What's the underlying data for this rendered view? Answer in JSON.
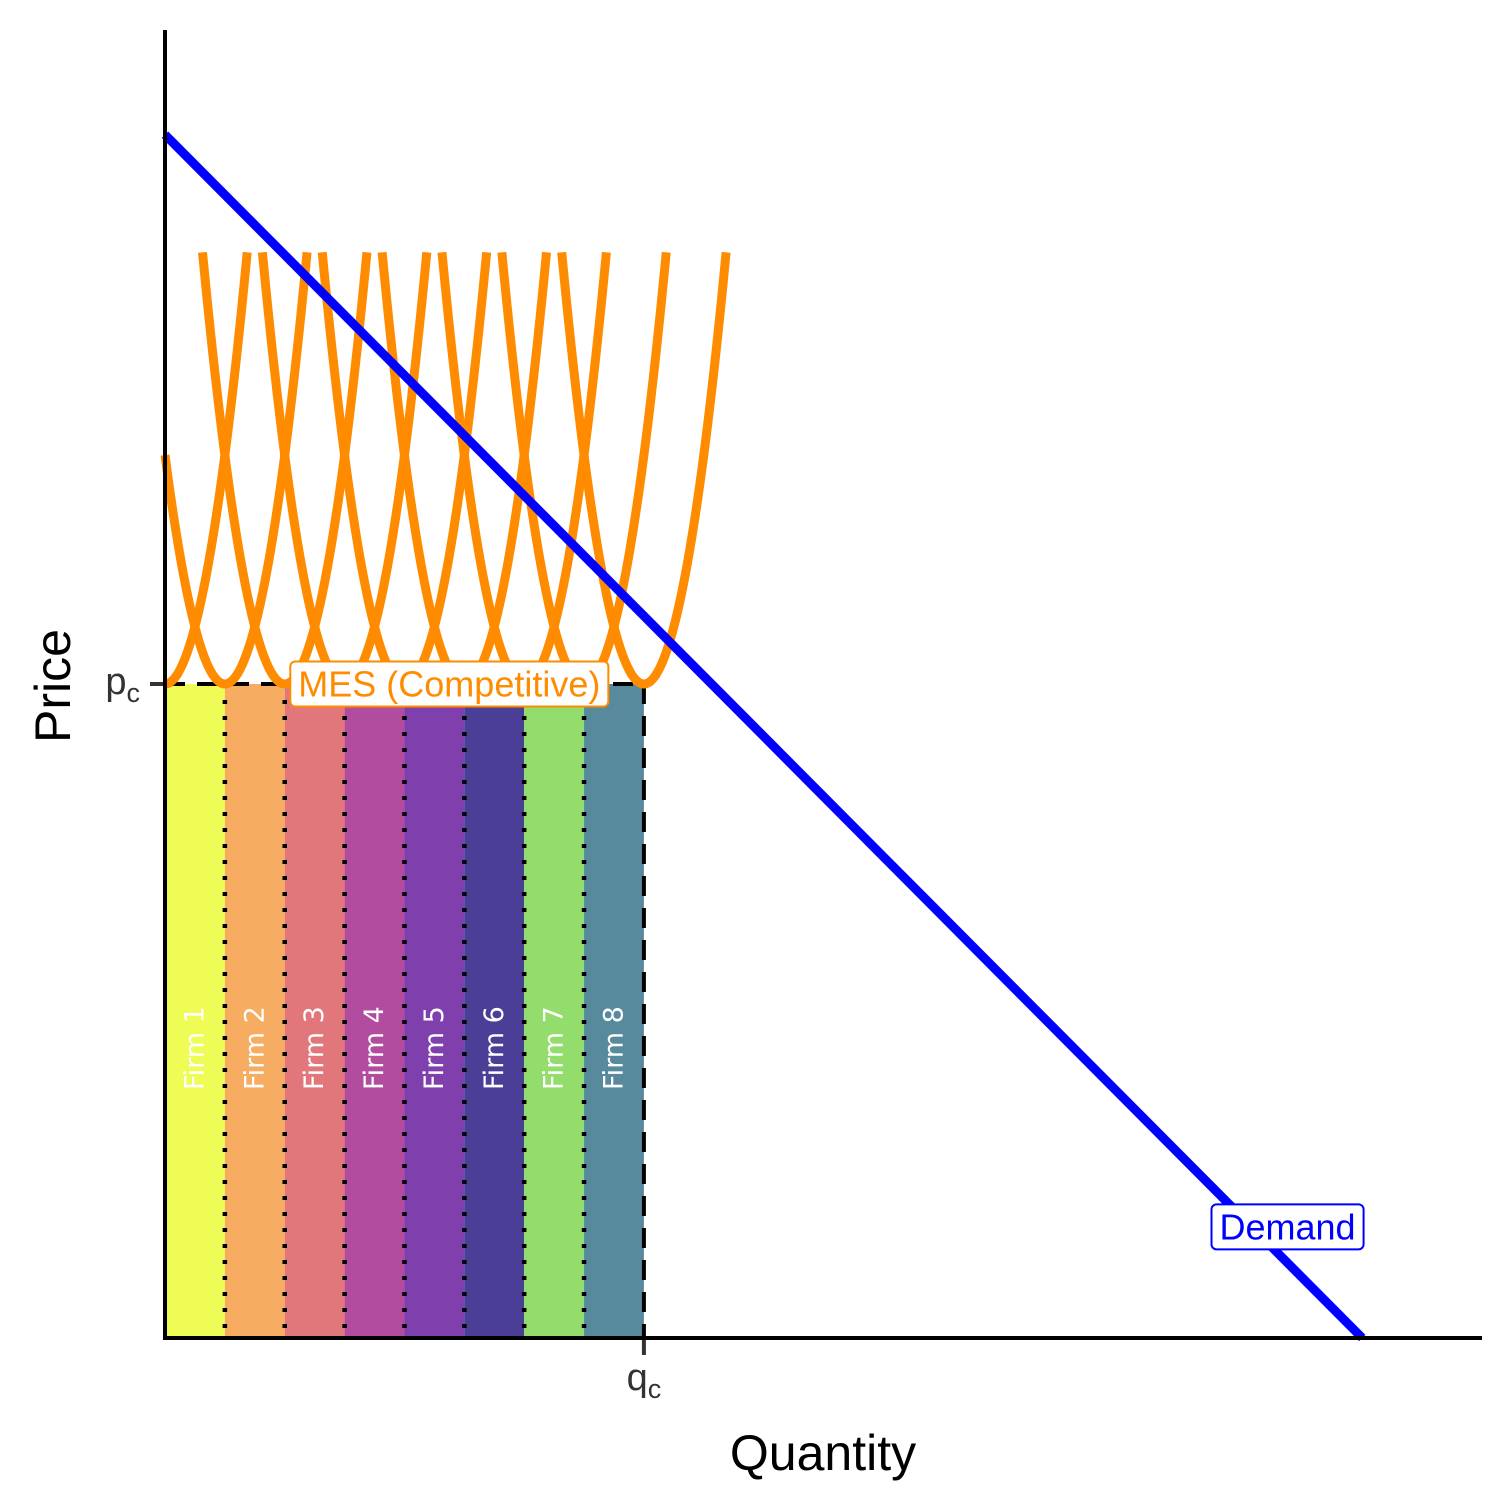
{
  "chart_data": {
    "type": "line",
    "title": "",
    "xlabel": "Quantity",
    "ylabel": "Price",
    "xlim": [
      0,
      22
    ],
    "ylim": [
      0,
      20
    ],
    "grid": false,
    "x_ticks": [
      {
        "value": 8,
        "label": "q",
        "sub": "c"
      }
    ],
    "y_ticks": [
      {
        "value": 10,
        "label": "p",
        "sub": "c"
      }
    ],
    "demand": {
      "name": "Demand",
      "color": "#0000FF",
      "points": [
        [
          0,
          18.4
        ],
        [
          20,
          0
        ]
      ],
      "label_at": [
        18,
        1.7
      ]
    },
    "cost_curves": {
      "color": "#FF8C00",
      "label": "MES (Competitive)",
      "label_at": [
        5,
        10
      ],
      "min_value": 10,
      "curvature": 3.5,
      "y_cap": 16.6,
      "minima_x": [
        0,
        1,
        2,
        3,
        4,
        5,
        6,
        7,
        8
      ]
    },
    "competitive_price": 10,
    "competitive_quantity": 8,
    "firms": [
      {
        "label": "Firm 1",
        "x0": 0,
        "x1": 1,
        "color": "#EFFC56"
      },
      {
        "label": "Firm 2",
        "x0": 1,
        "x1": 2,
        "color": "#F7AD61"
      },
      {
        "label": "Firm 3",
        "x0": 2,
        "x1": 3,
        "color": "#E1777A"
      },
      {
        "label": "Firm 4",
        "x0": 3,
        "x1": 4,
        "color": "#B24C9E"
      },
      {
        "label": "Firm 5",
        "x0": 4,
        "x1": 5,
        "color": "#7F40AE"
      },
      {
        "label": "Firm 6",
        "x0": 5,
        "x1": 6,
        "color": "#4A3E96"
      },
      {
        "label": "Firm 7",
        "x0": 6,
        "x1": 7,
        "color": "#93DD6D"
      },
      {
        "label": "Firm 8",
        "x0": 7,
        "x1": 8,
        "color": "#578A9C"
      }
    ]
  }
}
